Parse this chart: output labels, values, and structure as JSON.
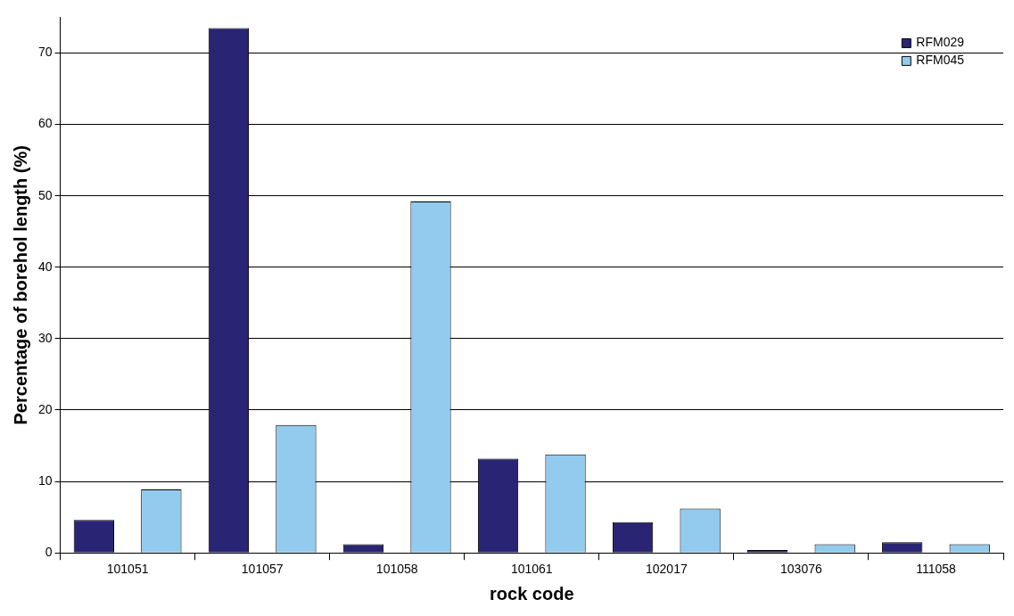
{
  "chart_data": {
    "type": "bar",
    "xlabel": "rock code",
    "ylabel": "Percentage of borehol length (%)",
    "categories": [
      "101051",
      "101057",
      "101058",
      "101061",
      "102017",
      "103076",
      "111058"
    ],
    "series": [
      {
        "name": "RFM029",
        "color": "#2a2475",
        "values": [
          4.6,
          73.5,
          1.2,
          13.2,
          4.3,
          0.4,
          1.5
        ]
      },
      {
        "name": "RFM045",
        "color": "#92cbee",
        "values": [
          8.9,
          17.9,
          49.2,
          13.8,
          6.2,
          1.2,
          1.2
        ]
      }
    ],
    "ylim": [
      0,
      75
    ],
    "yticks": [
      0,
      10,
      20,
      30,
      40,
      50,
      60,
      70
    ],
    "grid": "y",
    "legend": "top right"
  }
}
